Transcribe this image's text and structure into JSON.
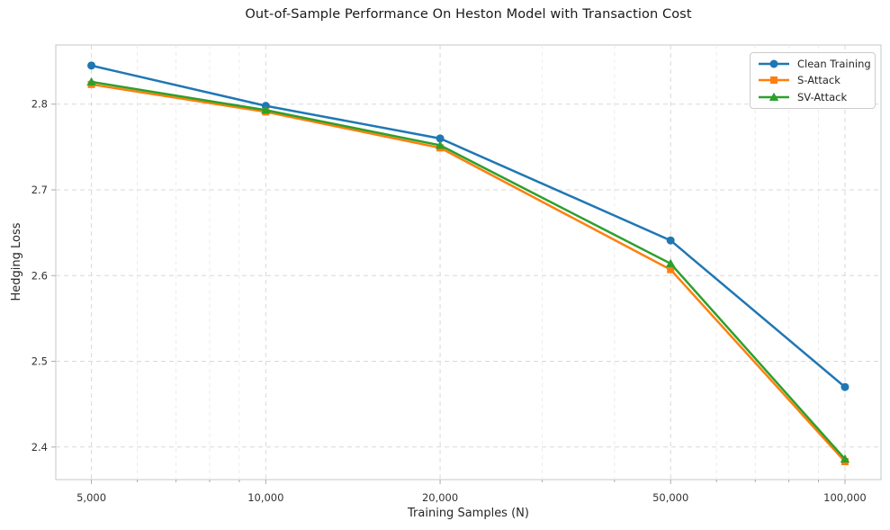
{
  "title": "Out-of-Sample Performance On Heston Model with Transaction Cost",
  "chart_data": {
    "type": "line",
    "title": "Out-of-Sample Performance On Heston Model with Transaction Cost",
    "xlabel": "Training Samples (N)",
    "ylabel": "Hedging Loss",
    "xscale": "log",
    "x": [
      5000,
      10000,
      20000,
      50000,
      100000
    ],
    "x_tick_labels": [
      "5,000",
      "10,000",
      "20,000",
      "50,000",
      "100,000"
    ],
    "y_ticks": [
      2.4,
      2.5,
      2.6,
      2.7,
      2.8
    ],
    "y_tick_labels": [
      "2.4",
      "2.5",
      "2.6",
      "2.7",
      "2.8"
    ],
    "xlim": [
      4340,
      115400
    ],
    "ylim": [
      2.362,
      2.869
    ],
    "grid": "dashed-major-and-minor-x",
    "minor_x_gridlines": [
      6000,
      7000,
      8000,
      9000,
      30000,
      40000,
      60000,
      70000,
      80000,
      90000
    ],
    "legend_position": "upper right",
    "series": [
      {
        "name": "Clean Training",
        "color": "#1f77b4",
        "marker": "circle",
        "values": [
          2.845,
          2.798,
          2.76,
          2.641,
          2.47
        ]
      },
      {
        "name": "S-Attack",
        "color": "#ff7f0e",
        "marker": "square",
        "values": [
          2.823,
          2.791,
          2.749,
          2.607,
          2.383
        ]
      },
      {
        "name": "SV-Attack",
        "color": "#2ca02c",
        "marker": "triangle",
        "values": [
          2.826,
          2.793,
          2.752,
          2.614,
          2.386
        ]
      }
    ]
  },
  "style": {
    "grid_major_color": "#d9d9d9",
    "grid_minor_color": "#ececec",
    "spine_color": "#c3c7cb",
    "tick_color": "#a8adb3",
    "tick_label_color": "#333333",
    "background": "#ffffff"
  }
}
